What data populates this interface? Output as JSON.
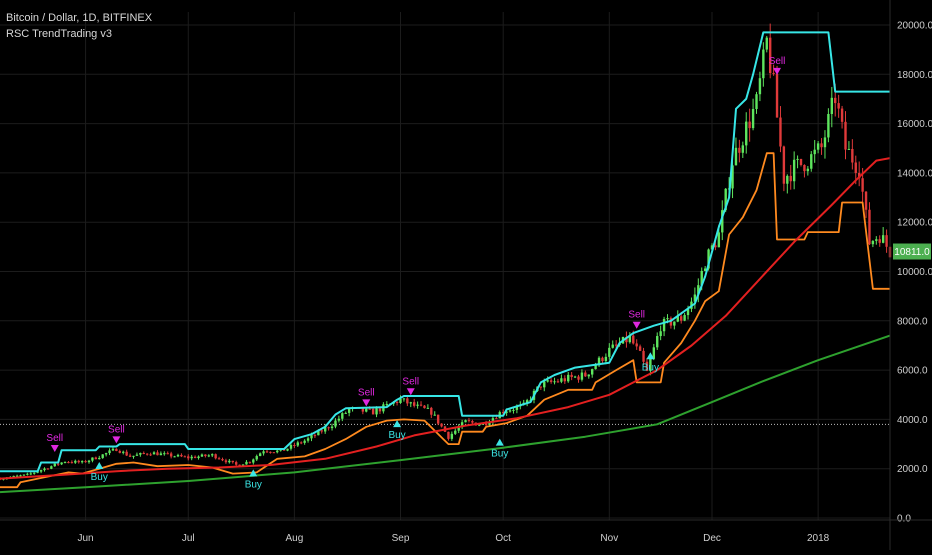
{
  "header": {
    "title": "Bitcoin / Dollar, 1D, BITFINEX",
    "indicator": "RSC TrendTrading v3"
  },
  "colors": {
    "background": "#000000",
    "grid": "#1c1c1c",
    "candle_up": "#5ee65e",
    "candle_down": "#e03a3a",
    "upper_band": "#37e6e6",
    "lower_band": "#ff8a1f",
    "sma_mid": "#e32020",
    "sma_long": "#2ea12e",
    "sell": "#e028e0",
    "buy": "#3ce6e6",
    "price_label": "#4caf50",
    "ref_line": "#bdbdbd"
  },
  "chart_data": {
    "type": "line",
    "ylim": [
      0,
      20000
    ],
    "yticks": [
      "0.0",
      "2000.0",
      "4000.0",
      "6000.0",
      "8000.0",
      "10000.0",
      "12000.0",
      "14000.0",
      "16000.0",
      "18000.0",
      "20000.0"
    ],
    "x_range": [
      "2017-05-07",
      "2018-01-22"
    ],
    "x_ticks": [
      {
        "date": "2017-06-01",
        "label": "Jun"
      },
      {
        "date": "2017-07-01",
        "label": "Jul"
      },
      {
        "date": "2017-08-01",
        "label": "Aug"
      },
      {
        "date": "2017-09-01",
        "label": "Sep"
      },
      {
        "date": "2017-10-01",
        "label": "Oct"
      },
      {
        "date": "2017-11-01",
        "label": "Nov"
      },
      {
        "date": "2017-12-01",
        "label": "Dec"
      },
      {
        "date": "2018-01-01",
        "label": "2018"
      }
    ],
    "last_price": "10811.0",
    "reference_level": 3800,
    "close_series": [
      [
        "2017-05-07",
        1600
      ],
      [
        "2017-05-15",
        1750
      ],
      [
        "2017-05-22",
        2100
      ],
      [
        "2017-05-26",
        2300
      ],
      [
        "2017-05-31",
        2250
      ],
      [
        "2017-06-05",
        2500
      ],
      [
        "2017-06-10",
        2800
      ],
      [
        "2017-06-14",
        2500
      ],
      [
        "2017-06-20",
        2650
      ],
      [
        "2017-06-25",
        2550
      ],
      [
        "2017-07-01",
        2450
      ],
      [
        "2017-07-08",
        2550
      ],
      [
        "2017-07-15",
        2150
      ],
      [
        "2017-07-19",
        2300
      ],
      [
        "2017-07-23",
        2750
      ],
      [
        "2017-07-28",
        2700
      ],
      [
        "2017-08-05",
        3200
      ],
      [
        "2017-08-12",
        3800
      ],
      [
        "2017-08-17",
        4400
      ],
      [
        "2017-08-24",
        4300
      ],
      [
        "2017-09-01",
        4800
      ],
      [
        "2017-09-05",
        4550
      ],
      [
        "2017-09-10",
        4300
      ],
      [
        "2017-09-15",
        3300
      ],
      [
        "2017-09-20",
        3900
      ],
      [
        "2017-09-25",
        3800
      ],
      [
        "2017-10-01",
        4350
      ],
      [
        "2017-10-07",
        4550
      ],
      [
        "2017-10-12",
        5400
      ],
      [
        "2017-10-18",
        5600
      ],
      [
        "2017-10-25",
        5800
      ],
      [
        "2017-11-01",
        6800
      ],
      [
        "2017-11-07",
        7300
      ],
      [
        "2017-11-10",
        6600
      ],
      [
        "2017-11-12",
        5900
      ],
      [
        "2017-11-16",
        7800
      ],
      [
        "2017-11-22",
        8100
      ],
      [
        "2017-11-26",
        9000
      ],
      [
        "2017-11-29",
        10400
      ],
      [
        "2017-12-03",
        11500
      ],
      [
        "2017-12-07",
        14500
      ],
      [
        "2017-12-10",
        15500
      ],
      [
        "2017-12-14",
        16800
      ],
      [
        "2017-12-17",
        19300
      ],
      [
        "2017-12-19",
        17500
      ],
      [
        "2017-12-22",
        13800
      ],
      [
        "2017-12-25",
        14200
      ],
      [
        "2017-12-29",
        14500
      ],
      [
        "2018-01-02",
        15000
      ],
      [
        "2018-01-06",
        17100
      ],
      [
        "2018-01-09",
        15000
      ],
      [
        "2018-01-13",
        14200
      ],
      [
        "2018-01-16",
        11200
      ],
      [
        "2018-01-19",
        11500
      ],
      [
        "2018-01-22",
        10811
      ]
    ],
    "series": [
      {
        "values": [
          [
            "2017-05-07",
            1900
          ],
          [
            "2017-05-18",
            1900
          ],
          [
            "2017-05-19",
            2250
          ],
          [
            "2017-05-24",
            2250
          ],
          [
            "2017-05-25",
            2750
          ],
          [
            "2017-06-04",
            2750
          ],
          [
            "2017-06-05",
            2900
          ],
          [
            "2017-06-10",
            2900
          ],
          [
            "2017-06-11",
            3000
          ],
          [
            "2017-06-30",
            3000
          ],
          [
            "2017-07-01",
            2800
          ],
          [
            "2017-07-29",
            2800
          ],
          [
            "2017-08-01",
            3200
          ],
          [
            "2017-08-06",
            3400
          ],
          [
            "2017-08-10",
            3700
          ],
          [
            "2017-08-13",
            4200
          ],
          [
            "2017-08-16",
            4450
          ],
          [
            "2017-08-28",
            4500
          ],
          [
            "2017-08-31",
            4800
          ],
          [
            "2017-09-02",
            4950
          ],
          [
            "2017-09-18",
            4950
          ],
          [
            "2017-09-19",
            4150
          ],
          [
            "2017-10-01",
            4150
          ],
          [
            "2017-10-02",
            4400
          ],
          [
            "2017-10-09",
            4700
          ],
          [
            "2017-10-12",
            5500
          ],
          [
            "2017-10-16",
            5800
          ],
          [
            "2017-10-22",
            6100
          ],
          [
            "2017-11-01",
            6300
          ],
          [
            "2017-11-04",
            7100
          ],
          [
            "2017-11-08",
            7500
          ],
          [
            "2017-11-14",
            7800
          ],
          [
            "2017-11-19",
            8000
          ],
          [
            "2017-11-22",
            8300
          ],
          [
            "2017-11-26",
            8700
          ],
          [
            "2017-11-29",
            9800
          ],
          [
            "2017-12-03",
            11800
          ],
          [
            "2017-12-06",
            13000
          ],
          [
            "2017-12-08",
            16600
          ],
          [
            "2017-12-11",
            17000
          ],
          [
            "2017-12-13",
            18000
          ],
          [
            "2017-12-16",
            19700
          ],
          [
            "2018-01-04",
            19700
          ],
          [
            "2018-01-06",
            17300
          ],
          [
            "2018-01-22",
            17300
          ]
        ]
      },
      {
        "values": [
          [
            "2017-05-07",
            1250
          ],
          [
            "2017-05-12",
            1250
          ],
          [
            "2017-05-13",
            1450
          ],
          [
            "2017-05-20",
            1650
          ],
          [
            "2017-05-27",
            1850
          ],
          [
            "2017-05-31",
            1800
          ],
          [
            "2017-06-05",
            2000
          ],
          [
            "2017-06-10",
            2200
          ],
          [
            "2017-06-15",
            2250
          ],
          [
            "2017-06-22",
            2100
          ],
          [
            "2017-07-01",
            2150
          ],
          [
            "2017-07-08",
            2050
          ],
          [
            "2017-07-14",
            1800
          ],
          [
            "2017-07-21",
            1850
          ],
          [
            "2017-07-27",
            2400
          ],
          [
            "2017-08-04",
            2500
          ],
          [
            "2017-08-10",
            2800
          ],
          [
            "2017-08-16",
            3200
          ],
          [
            "2017-08-22",
            3700
          ],
          [
            "2017-08-28",
            3950
          ],
          [
            "2017-09-02",
            4000
          ],
          [
            "2017-09-08",
            3950
          ],
          [
            "2017-09-15",
            3000
          ],
          [
            "2017-09-18",
            3000
          ],
          [
            "2017-09-19",
            3500
          ],
          [
            "2017-09-25",
            3500
          ],
          [
            "2017-09-26",
            3700
          ],
          [
            "2017-10-02",
            3850
          ],
          [
            "2017-10-08",
            4150
          ],
          [
            "2017-10-13",
            4800
          ],
          [
            "2017-10-20",
            5200
          ],
          [
            "2017-10-27",
            5200
          ],
          [
            "2017-10-28",
            5500
          ],
          [
            "2017-11-03",
            6000
          ],
          [
            "2017-11-08",
            6400
          ],
          [
            "2017-11-09",
            5500
          ],
          [
            "2017-11-16",
            5500
          ],
          [
            "2017-11-17",
            6300
          ],
          [
            "2017-11-22",
            7100
          ],
          [
            "2017-11-26",
            8000
          ],
          [
            "2017-11-29",
            8800
          ],
          [
            "2017-12-03",
            9200
          ],
          [
            "2017-12-06",
            11500
          ],
          [
            "2017-12-10",
            12200
          ],
          [
            "2017-12-14",
            13300
          ],
          [
            "2017-12-17",
            14800
          ],
          [
            "2017-12-19",
            14800
          ],
          [
            "2017-12-20",
            11300
          ],
          [
            "2017-12-28",
            11300
          ],
          [
            "2017-12-29",
            11600
          ],
          [
            "2018-01-07",
            11600
          ],
          [
            "2018-01-08",
            12800
          ],
          [
            "2018-01-14",
            12800
          ],
          [
            "2018-01-17",
            9300
          ],
          [
            "2018-01-22",
            9300
          ]
        ]
      },
      {
        "values": [
          [
            "2017-05-07",
            1600
          ],
          [
            "2017-05-25",
            1750
          ],
          [
            "2017-06-10",
            1900
          ],
          [
            "2017-06-25",
            2000
          ],
          [
            "2017-07-10",
            2050
          ],
          [
            "2017-07-25",
            2150
          ],
          [
            "2017-08-10",
            2400
          ],
          [
            "2017-08-25",
            2900
          ],
          [
            "2017-09-05",
            3350
          ],
          [
            "2017-09-20",
            3750
          ],
          [
            "2017-10-05",
            4050
          ],
          [
            "2017-10-20",
            4500
          ],
          [
            "2017-11-01",
            5000
          ],
          [
            "2017-11-15",
            6000
          ],
          [
            "2017-11-25",
            7000
          ],
          [
            "2017-12-05",
            8200
          ],
          [
            "2017-12-15",
            9700
          ],
          [
            "2017-12-25",
            11200
          ],
          [
            "2018-01-05",
            12700
          ],
          [
            "2018-01-12",
            13700
          ],
          [
            "2018-01-18",
            14500
          ],
          [
            "2018-01-22",
            14600
          ]
        ]
      },
      {
        "values": [
          [
            "2017-05-07",
            1050
          ],
          [
            "2017-06-01",
            1250
          ],
          [
            "2017-07-01",
            1500
          ],
          [
            "2017-08-01",
            1850
          ],
          [
            "2017-09-01",
            2350
          ],
          [
            "2017-10-01",
            2850
          ],
          [
            "2017-10-25",
            3300
          ],
          [
            "2017-11-15",
            3800
          ],
          [
            "2017-12-01",
            4700
          ],
          [
            "2017-12-15",
            5500
          ],
          [
            "2018-01-01",
            6400
          ],
          [
            "2018-01-22",
            7400
          ]
        ]
      }
    ],
    "signals": [
      {
        "type": "sell",
        "label": "Sell",
        "date": "2017-05-23",
        "price": 2800
      },
      {
        "type": "sell",
        "label": "Sell",
        "date": "2017-06-10",
        "price": 3150
      },
      {
        "type": "buy",
        "label": "Buy",
        "date": "2017-06-05",
        "price": 2150
      },
      {
        "type": "buy",
        "label": "Buy",
        "date": "2017-07-20",
        "price": 1850
      },
      {
        "type": "sell",
        "label": "Sell",
        "date": "2017-08-22",
        "price": 4650
      },
      {
        "type": "sell",
        "label": "Sell",
        "date": "2017-09-04",
        "price": 5100
      },
      {
        "type": "buy",
        "label": "Buy",
        "date": "2017-08-31",
        "price": 3850
      },
      {
        "type": "buy",
        "label": "Buy",
        "date": "2017-09-30",
        "price": 3100
      },
      {
        "type": "sell",
        "label": "Sell",
        "date": "2017-11-09",
        "price": 7800
      },
      {
        "type": "buy",
        "label": "Buy",
        "date": "2017-11-13",
        "price": 6600
      },
      {
        "type": "sell",
        "label": "Sell",
        "date": "2017-12-20",
        "price": 18100
      }
    ]
  }
}
